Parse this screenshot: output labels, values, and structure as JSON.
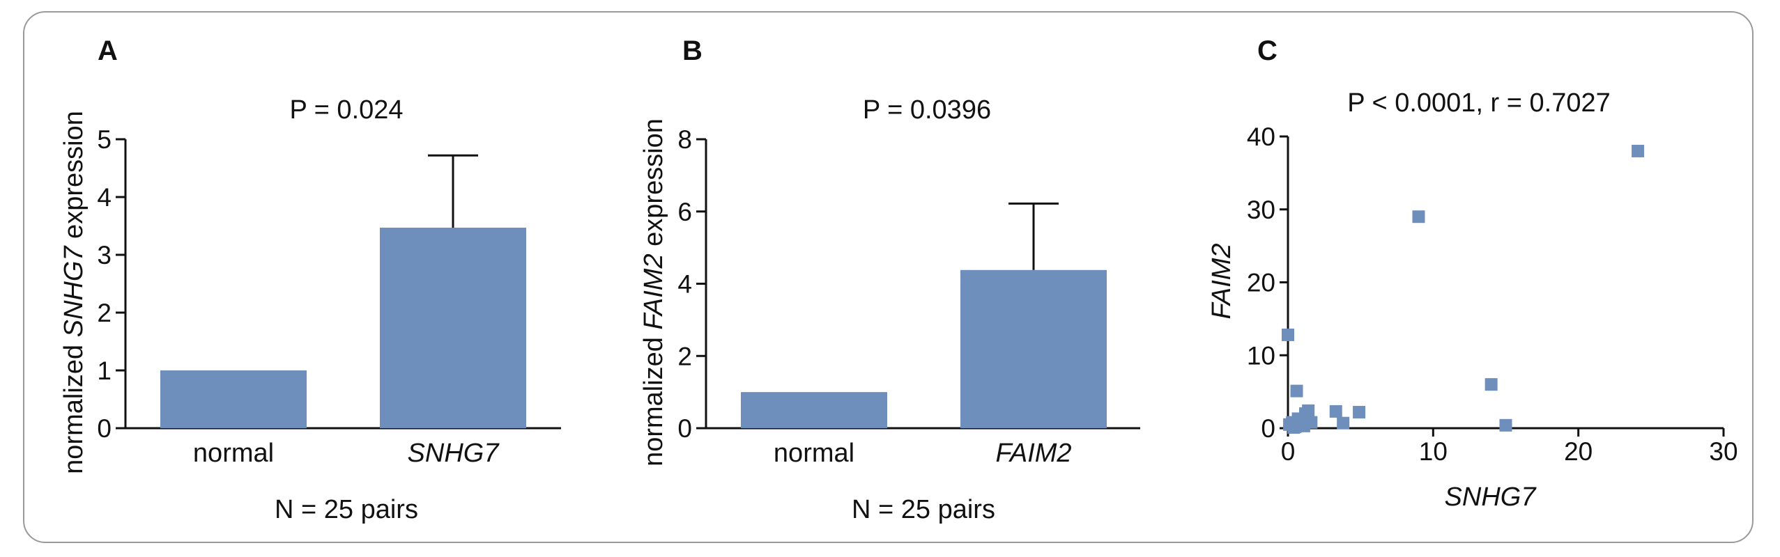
{
  "colors": {
    "bar": "#6E8EBB",
    "marker": "#6E8EBB",
    "frame": "#9a9a9a",
    "ink": "#111111"
  },
  "chart_data": [
    {
      "panel": "A",
      "type": "bar",
      "title": "P = 0.024",
      "ylabel_prefix": "normalized ",
      "ylabel_gene": "SNHG7",
      "ylabel_suffix": " expression",
      "xlabel": "N = 25 pairs",
      "categories": [
        "normal",
        "SNHG7"
      ],
      "category_italic": [
        false,
        true
      ],
      "values": [
        1.0,
        3.47
      ],
      "error_upper": [
        null,
        4.72
      ],
      "ylim": [
        0,
        5
      ],
      "yticks": [
        "0",
        "1",
        "2",
        "3",
        "4",
        "5"
      ]
    },
    {
      "panel": "B",
      "type": "bar",
      "title": "P = 0.0396",
      "ylabel_prefix": "normalized ",
      "ylabel_gene": "FAIM2",
      "ylabel_suffix": " expression",
      "xlabel": "N = 25 pairs",
      "categories": [
        "normal",
        "FAIM2"
      ],
      "category_italic": [
        false,
        true
      ],
      "values": [
        1.0,
        4.38
      ],
      "error_upper": [
        null,
        6.22
      ],
      "ylim": [
        0,
        8
      ],
      "yticks": [
        "0",
        "2",
        "4",
        "6",
        "8"
      ]
    },
    {
      "panel": "C",
      "type": "scatter",
      "title": "P < 0.0001, r = 0.7027",
      "xlabel": "SNHG7",
      "ylabel": "FAIM2",
      "xlim": [
        0,
        30
      ],
      "ylim": [
        0,
        40
      ],
      "xticks": [
        "0",
        "10",
        "20",
        "30"
      ],
      "yticks": [
        "0",
        "10",
        "20",
        "30",
        "40"
      ],
      "points": [
        [
          0.0,
          12.8
        ],
        [
          0.6,
          5.1
        ],
        [
          9.0,
          29.0
        ],
        [
          24.1,
          38.0
        ],
        [
          14.0,
          6.0
        ],
        [
          15.0,
          0.4
        ],
        [
          0.1,
          0.5
        ],
        [
          0.3,
          0.8
        ],
        [
          0.5,
          0.2
        ],
        [
          0.8,
          0.6
        ],
        [
          1.0,
          1.0
        ],
        [
          1.2,
          2.0
        ],
        [
          1.4,
          2.4
        ],
        [
          1.6,
          0.8
        ],
        [
          3.3,
          2.3
        ],
        [
          3.8,
          0.7
        ],
        [
          4.9,
          2.2
        ],
        [
          0.4,
          0.1
        ],
        [
          0.7,
          1.3
        ],
        [
          1.1,
          0.3
        ]
      ]
    }
  ]
}
